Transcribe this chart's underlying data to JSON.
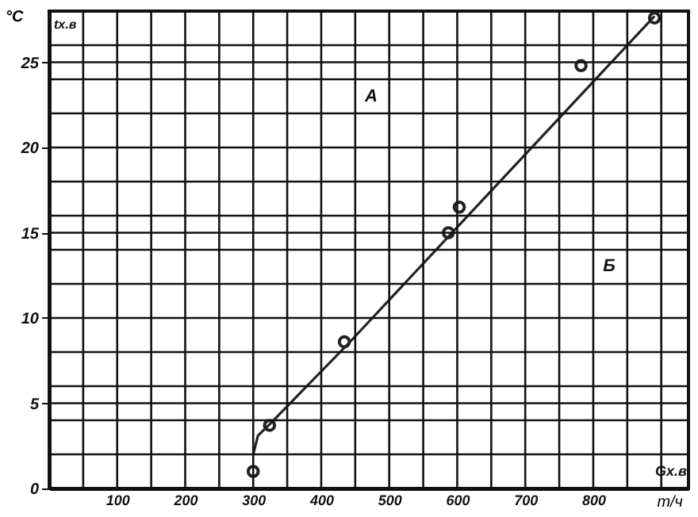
{
  "chart_data": {
    "type": "scatter",
    "xlabel": "т/ч",
    "ylabel": "°C",
    "annotations": [
      "tх.в",
      "Gх.в",
      "A",
      "Б"
    ],
    "xlim": [
      0,
      940
    ],
    "ylim": [
      0,
      28
    ],
    "xticks": [
      {
        "value": 50,
        "label": null
      },
      100,
      {
        "value": 150,
        "label": null
      },
      200,
      {
        "value": 250,
        "label": null
      },
      300,
      {
        "value": 350,
        "label": null
      },
      400,
      {
        "value": 450,
        "label": null
      },
      500,
      {
        "value": 550,
        "label": null
      },
      600,
      {
        "value": 650,
        "label": null
      },
      700,
      {
        "value": 750,
        "label": null
      },
      800,
      {
        "value": 850,
        "label": null
      },
      {
        "value": 900,
        "label": null
      }
    ],
    "yticks": [
      0,
      {
        "value": 2,
        "label": null
      },
      {
        "value": 4,
        "label": null
      },
      5,
      {
        "value": 6,
        "label": null
      },
      {
        "value": 8,
        "label": null
      },
      10,
      {
        "value": 12,
        "label": null
      },
      {
        "value": 14,
        "label": null
      },
      15,
      {
        "value": 16,
        "label": null
      },
      {
        "value": 18,
        "label": null
      },
      20,
      {
        "value": 22,
        "label": null
      },
      {
        "value": 24,
        "label": null
      },
      25,
      {
        "value": 26,
        "label": null
      }
    ],
    "grid": true,
    "marker": "circle",
    "series": [
      {
        "type": "scatter",
        "color": "#222222",
        "x": [
          300,
          324,
          434,
          587,
          603,
          782,
          890
        ],
        "values": [
          1.0,
          3.7,
          8.6,
          15.0,
          16.5,
          24.8,
          27.6
        ]
      },
      {
        "type": "line",
        "color": "#222222",
        "marker": "none",
        "x": [
          300,
          307,
          325,
          440,
          890
        ],
        "values": [
          2.0,
          3.1,
          3.8,
          8.5,
          27.7
        ]
      }
    ]
  }
}
